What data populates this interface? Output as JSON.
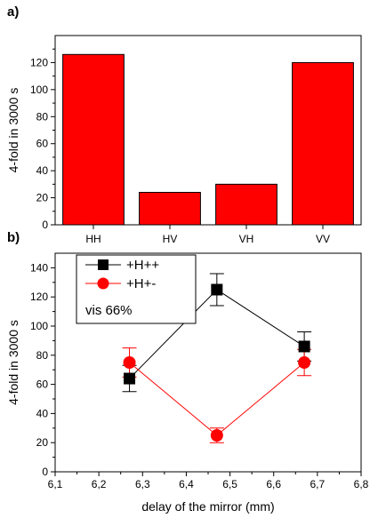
{
  "panel_labels": {
    "a": "a)",
    "b": "b)"
  },
  "chart_data": [
    {
      "type": "bar",
      "panel": "a)",
      "categories": [
        "HH",
        "HV",
        "VH",
        "VV"
      ],
      "values": [
        126,
        24,
        30,
        120
      ],
      "title": "",
      "xlabel": "",
      "ylabel": "4-fold in 3000 s",
      "ylim": [
        0,
        140
      ],
      "yticks": [
        0,
        20,
        40,
        60,
        80,
        100,
        120
      ],
      "bar_color": "#ff0000",
      "grid": false
    },
    {
      "type": "line",
      "panel": "b)",
      "x": [
        6.27,
        6.47,
        6.67
      ],
      "series": [
        {
          "name": "+H++",
          "values": [
            64,
            125,
            86
          ],
          "errors": [
            9,
            11,
            10
          ],
          "color": "#000000",
          "marker": "square"
        },
        {
          "name": "+H+-",
          "values": [
            75,
            25,
            75
          ],
          "errors": [
            10,
            5,
            9
          ],
          "color": "#ff0000",
          "marker": "circle"
        }
      ],
      "annotation": "vis 66%",
      "title": "",
      "xlabel": "delay of the mirror (mm)",
      "ylabel": "4-fold in 3000 s",
      "xlim": [
        6.1,
        6.8
      ],
      "ylim": [
        0,
        150
      ],
      "xticks": [
        "6,1",
        "6,2",
        "6,3",
        "6,4",
        "6,5",
        "6,6",
        "6,7",
        "6,8"
      ],
      "yticks": [
        0,
        20,
        40,
        60,
        80,
        100,
        120,
        140
      ],
      "legend": "top-left",
      "grid": false
    }
  ]
}
